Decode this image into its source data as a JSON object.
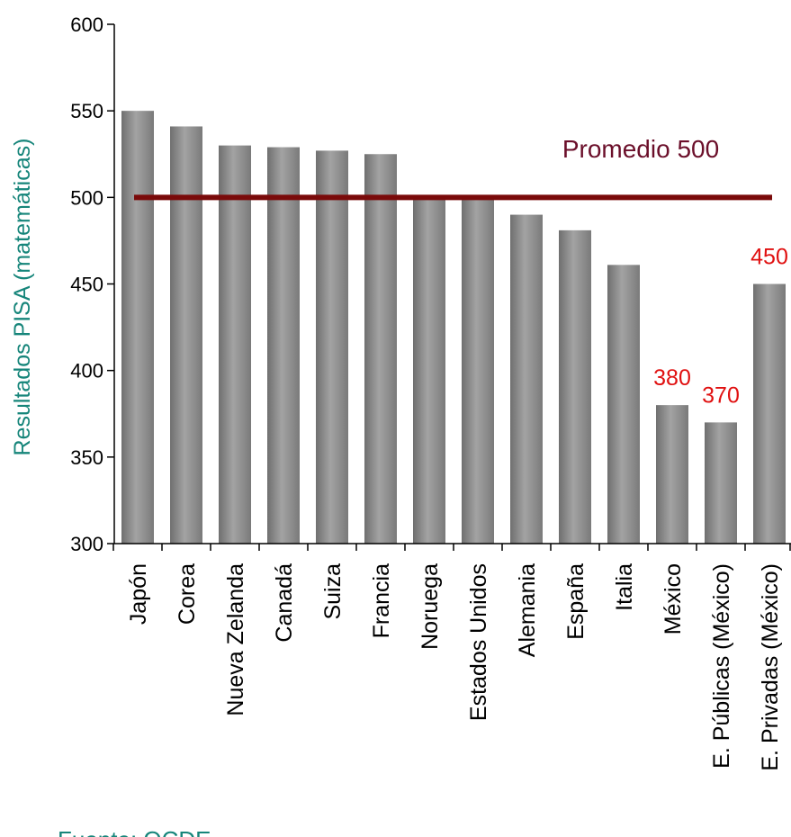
{
  "chart_data": {
    "type": "bar",
    "ylabel": "Resultados PISA (matemáticas)",
    "ylim": [
      300,
      600
    ],
    "yticks": [
      300,
      350,
      400,
      450,
      500,
      550,
      600
    ],
    "categories": [
      "Japón",
      "Corea",
      "Nueva Zelanda",
      "Canadá",
      "Suiza",
      "Francia",
      "Noruega",
      "Estados Unidos",
      "Alemania",
      "España",
      "Italia",
      "México",
      "E. Públicas (México)",
      "E. Privadas (México)"
    ],
    "values": [
      550,
      541,
      530,
      529,
      527,
      525,
      499,
      500,
      490,
      481,
      461,
      380,
      370,
      450
    ],
    "data_labels": [
      {
        "category_index": 11,
        "text": "380"
      },
      {
        "category_index": 12,
        "text": "370"
      },
      {
        "category_index": 13,
        "text": "450"
      }
    ],
    "reference_line": {
      "value": 500,
      "label": "Promedio 500",
      "color": "#7a0a0a"
    },
    "bar_color": "#8c8c8c",
    "source": "Fuente: OCDE"
  }
}
